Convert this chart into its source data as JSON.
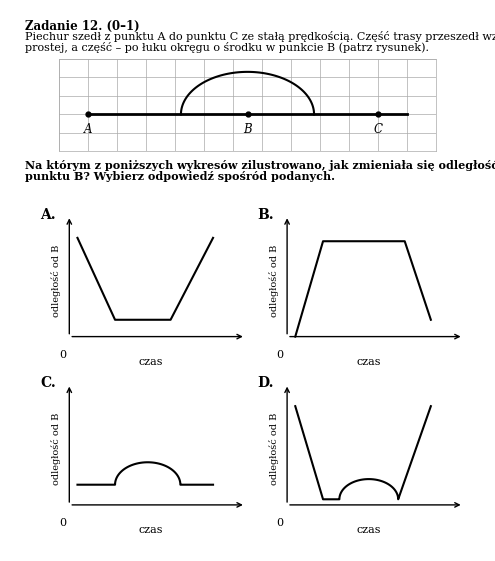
{
  "title_bold": "Zadanie 12. (0–1)",
  "body_text_line1": "Piechur szedł z punktu A do punktu C ze stałą prędkością. Część trasy przeszedł wzdłuż",
  "body_text_line2": "prostej, a część – po łuku okręgu o środku w punkcie B (patrz rysunek).",
  "question_line1": "Na którym z poniższych wykresów zilustrowano, jak zmieniała się odległość piechura od",
  "question_line2": "punktu B? Wybierz odpowiedź spośród podanych.",
  "graph_ylabel": "odległość od B",
  "graph_xlabel": "czas",
  "bg_color": "#ffffff",
  "line_color": "#000000",
  "grid_cols": 13,
  "grid_rows": 5
}
